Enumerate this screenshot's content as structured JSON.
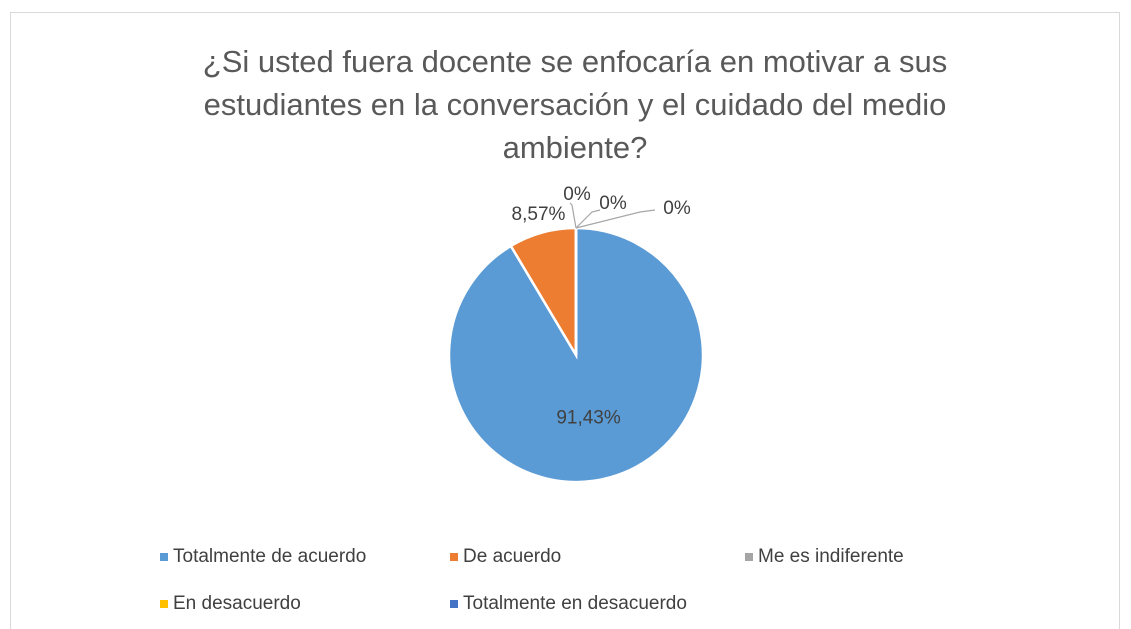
{
  "chart_data": {
    "type": "pie",
    "title": "¿Si usted fuera docente se enfocaría en motivar a sus estudiantes en la conversación y el cuidado del medio ambiente?",
    "categories": [
      "Totalmente de acuerdo",
      "De acuerdo",
      "Me es indiferente",
      "En desacuerdo",
      "Totalmente en desacuerdo"
    ],
    "values": [
      91.43,
      8.57,
      0,
      0,
      0
    ],
    "value_labels": [
      "91,43%",
      "8,57%",
      "0%",
      "0%",
      "0%"
    ],
    "colors": [
      "#5b9bd5",
      "#ed7d31",
      "#a5a5a5",
      "#ffc000",
      "#4472c4"
    ],
    "legend": "bottom"
  }
}
